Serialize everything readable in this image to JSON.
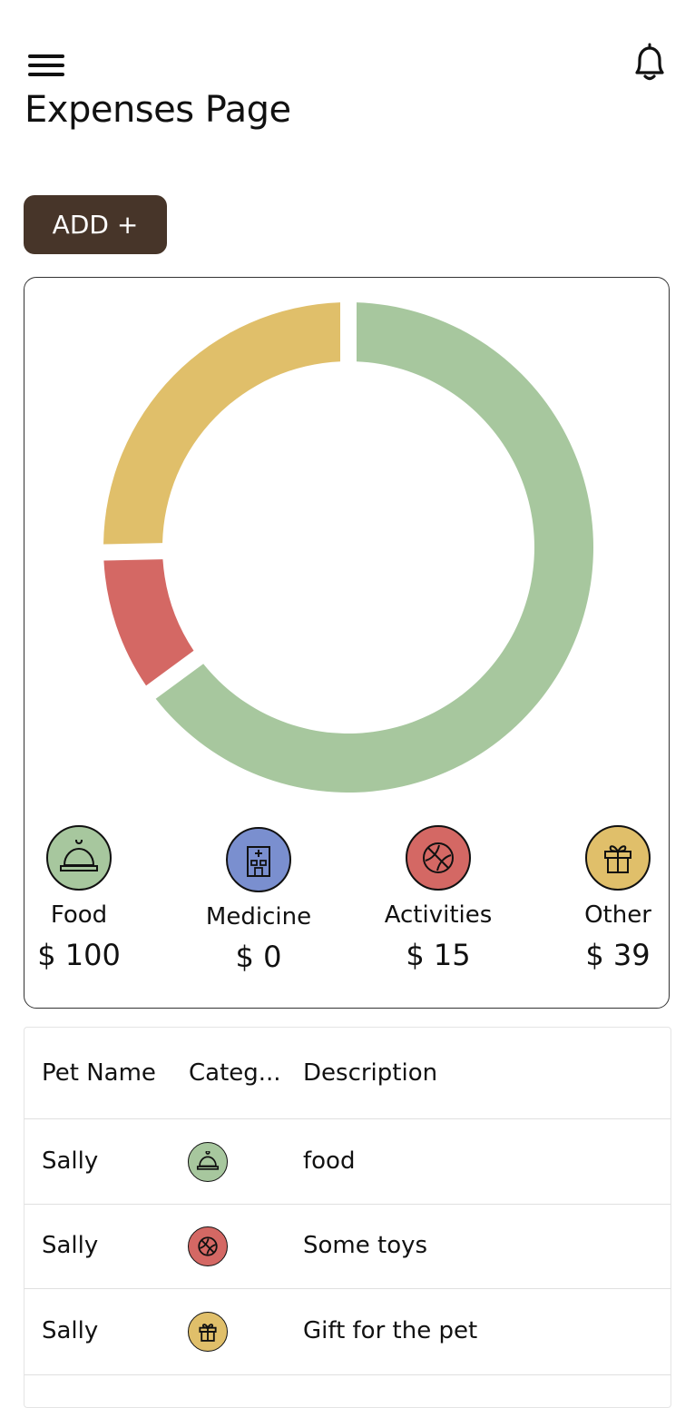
{
  "header": {
    "menu_icon": "hamburger-menu-icon",
    "notification_icon": "bell-icon",
    "title": "Expenses Page"
  },
  "actions": {
    "add_label": "ADD +"
  },
  "colors": {
    "food": "#a7c79e",
    "medicine": "#7a8fcf",
    "activities": "#d46864",
    "other": "#e0bf6a",
    "add_button": "#473529"
  },
  "chart_data": {
    "type": "pie",
    "variant": "donut",
    "categories": [
      "Food",
      "Medicine",
      "Activities",
      "Other"
    ],
    "values": [
      100,
      0,
      15,
      39
    ],
    "colors": [
      "#a7c79e",
      "#7a8fcf",
      "#d46864",
      "#e0bf6a"
    ]
  },
  "legend": [
    {
      "label": "Food",
      "value": "$ 100",
      "icon": "food-cloche-icon"
    },
    {
      "label": "Medicine",
      "value": "$ 0",
      "icon": "hospital-icon"
    },
    {
      "label": "Activities",
      "value": "$ 15",
      "icon": "ball-icon"
    },
    {
      "label": "Other",
      "value": "$ 39",
      "icon": "gift-icon"
    }
  ],
  "table": {
    "columns": [
      "Pet Name",
      "Categ...",
      "Description"
    ],
    "rows": [
      {
        "pet_name": "Sally",
        "category": "food",
        "description": "food"
      },
      {
        "pet_name": "Sally",
        "category": "activities",
        "description": "Some toys"
      },
      {
        "pet_name": "Sally",
        "category": "other",
        "description": "Gift for the pet"
      }
    ]
  }
}
